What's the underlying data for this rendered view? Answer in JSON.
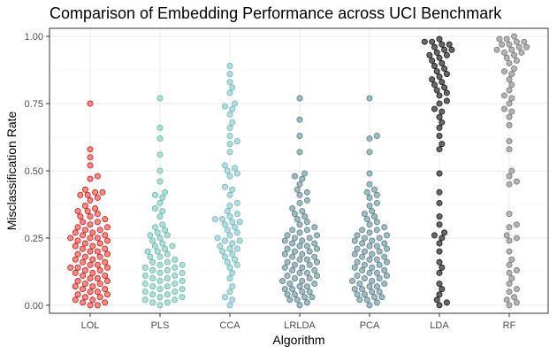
{
  "chart_data": {
    "type": "scatter",
    "subtype": "beeswarm",
    "title": "Comparison of Embedding Performance across UCI Benchmark",
    "xlabel": "Algorithm",
    "ylabel": "Misclassification Rate",
    "ylim": [
      -0.03,
      1.03
    ],
    "yticks": [
      0.0,
      0.25,
      0.5,
      0.75,
      1.0
    ],
    "ytick_labels": [
      "0.00",
      "0.25",
      "0.50",
      "0.75",
      "1.00"
    ],
    "grid": true,
    "legend": "none",
    "categories": [
      "LOL",
      "PLS",
      "CCA",
      "LRLDA",
      "PCA",
      "LDA",
      "RF"
    ],
    "series": [
      {
        "category": "LOL",
        "color": "#f8766d",
        "stroke": "#c81e1e",
        "values": [
          0.75,
          0.58,
          0.55,
          0.52,
          0.48,
          0.47,
          0.43,
          0.42,
          0.42,
          0.41,
          0.41,
          0.4,
          0.39,
          0.37,
          0.36,
          0.35,
          0.35,
          0.34,
          0.33,
          0.33,
          0.32,
          0.31,
          0.31,
          0.3,
          0.29,
          0.29,
          0.28,
          0.28,
          0.27,
          0.27,
          0.26,
          0.26,
          0.25,
          0.25,
          0.25,
          0.24,
          0.24,
          0.23,
          0.23,
          0.22,
          0.22,
          0.21,
          0.21,
          0.2,
          0.2,
          0.19,
          0.19,
          0.18,
          0.18,
          0.17,
          0.17,
          0.16,
          0.16,
          0.15,
          0.15,
          0.14,
          0.14,
          0.14,
          0.13,
          0.13,
          0.12,
          0.12,
          0.11,
          0.11,
          0.1,
          0.1,
          0.09,
          0.09,
          0.08,
          0.08,
          0.07,
          0.07,
          0.06,
          0.06,
          0.05,
          0.05,
          0.04,
          0.04,
          0.03,
          0.03,
          0.02,
          0.02,
          0.01,
          0.01,
          0.0,
          0.0
        ]
      },
      {
        "category": "PLS",
        "color": "#9fdcd0",
        "stroke": "#6fb5a8",
        "values": [
          0.77,
          0.66,
          0.62,
          0.56,
          0.5,
          0.46,
          0.42,
          0.41,
          0.4,
          0.38,
          0.36,
          0.35,
          0.33,
          0.3,
          0.29,
          0.28,
          0.27,
          0.26,
          0.26,
          0.25,
          0.24,
          0.23,
          0.22,
          0.22,
          0.21,
          0.2,
          0.2,
          0.19,
          0.18,
          0.18,
          0.17,
          0.16,
          0.16,
          0.15,
          0.15,
          0.14,
          0.14,
          0.13,
          0.13,
          0.12,
          0.12,
          0.11,
          0.11,
          0.1,
          0.1,
          0.09,
          0.09,
          0.08,
          0.08,
          0.07,
          0.07,
          0.06,
          0.06,
          0.05,
          0.05,
          0.04,
          0.04,
          0.03,
          0.03,
          0.02,
          0.02,
          0.01,
          0.01,
          0.0
        ]
      },
      {
        "category": "CCA",
        "color": "#a6d8dc",
        "stroke": "#72b5bb",
        "values": [
          0.89,
          0.86,
          0.83,
          0.81,
          0.79,
          0.75,
          0.74,
          0.73,
          0.71,
          0.68,
          0.66,
          0.63,
          0.61,
          0.6,
          0.57,
          0.52,
          0.51,
          0.5,
          0.49,
          0.48,
          0.44,
          0.43,
          0.41,
          0.38,
          0.37,
          0.35,
          0.34,
          0.33,
          0.32,
          0.32,
          0.31,
          0.31,
          0.3,
          0.29,
          0.28,
          0.27,
          0.26,
          0.25,
          0.24,
          0.24,
          0.23,
          0.22,
          0.21,
          0.21,
          0.2,
          0.19,
          0.18,
          0.17,
          0.16,
          0.15,
          0.14,
          0.12,
          0.1,
          0.07,
          0.05,
          0.03,
          0.02,
          0.0
        ]
      },
      {
        "category": "LRLDA",
        "color": "#8fb0b8",
        "stroke": "#5f8089",
        "values": [
          0.77,
          0.69,
          0.63,
          0.57,
          0.49,
          0.48,
          0.47,
          0.45,
          0.43,
          0.42,
          0.41,
          0.39,
          0.38,
          0.36,
          0.35,
          0.34,
          0.33,
          0.32,
          0.31,
          0.3,
          0.29,
          0.28,
          0.28,
          0.27,
          0.26,
          0.26,
          0.25,
          0.25,
          0.24,
          0.24,
          0.23,
          0.23,
          0.22,
          0.22,
          0.21,
          0.21,
          0.2,
          0.2,
          0.19,
          0.19,
          0.18,
          0.18,
          0.17,
          0.17,
          0.16,
          0.16,
          0.15,
          0.15,
          0.14,
          0.14,
          0.13,
          0.13,
          0.12,
          0.12,
          0.11,
          0.11,
          0.1,
          0.1,
          0.09,
          0.09,
          0.08,
          0.08,
          0.07,
          0.07,
          0.06,
          0.06,
          0.05,
          0.05,
          0.04,
          0.04,
          0.03,
          0.03,
          0.02,
          0.02,
          0.01,
          0.0
        ]
      },
      {
        "category": "PCA",
        "color": "#8fb0b8",
        "stroke": "#5f8089",
        "values": [
          0.77,
          0.63,
          0.62,
          0.57,
          0.49,
          0.45,
          0.43,
          0.42,
          0.41,
          0.4,
          0.38,
          0.37,
          0.35,
          0.34,
          0.33,
          0.32,
          0.31,
          0.3,
          0.29,
          0.28,
          0.28,
          0.27,
          0.26,
          0.26,
          0.25,
          0.25,
          0.24,
          0.24,
          0.23,
          0.23,
          0.22,
          0.22,
          0.21,
          0.21,
          0.2,
          0.2,
          0.19,
          0.19,
          0.18,
          0.18,
          0.17,
          0.17,
          0.16,
          0.16,
          0.15,
          0.15,
          0.14,
          0.14,
          0.13,
          0.13,
          0.12,
          0.12,
          0.11,
          0.11,
          0.1,
          0.1,
          0.09,
          0.09,
          0.08,
          0.08,
          0.07,
          0.07,
          0.06,
          0.06,
          0.05,
          0.05,
          0.04,
          0.04,
          0.03,
          0.03,
          0.02,
          0.02,
          0.01,
          0.0
        ]
      },
      {
        "category": "LDA",
        "color": "#4d4d4d",
        "stroke": "#1a1a1a",
        "values": [
          0.99,
          0.98,
          0.98,
          0.97,
          0.97,
          0.96,
          0.95,
          0.95,
          0.94,
          0.93,
          0.93,
          0.92,
          0.91,
          0.9,
          0.89,
          0.88,
          0.87,
          0.86,
          0.85,
          0.84,
          0.83,
          0.82,
          0.81,
          0.8,
          0.79,
          0.78,
          0.76,
          0.75,
          0.73,
          0.72,
          0.7,
          0.68,
          0.66,
          0.63,
          0.6,
          0.58,
          0.49,
          0.42,
          0.38,
          0.33,
          0.3,
          0.27,
          0.26,
          0.25,
          0.23,
          0.2,
          0.16,
          0.14,
          0.12,
          0.08,
          0.06,
          0.04,
          0.02,
          0.01,
          0.0
        ]
      },
      {
        "category": "RF",
        "color": "#a6a6a6",
        "stroke": "#7a7a7a",
        "values": [
          1.0,
          0.99,
          0.99,
          0.98,
          0.98,
          0.97,
          0.97,
          0.96,
          0.96,
          0.95,
          0.95,
          0.94,
          0.94,
          0.93,
          0.92,
          0.91,
          0.9,
          0.88,
          0.87,
          0.86,
          0.84,
          0.82,
          0.8,
          0.78,
          0.77,
          0.75,
          0.73,
          0.72,
          0.7,
          0.67,
          0.61,
          0.58,
          0.5,
          0.48,
          0.46,
          0.45,
          0.34,
          0.3,
          0.29,
          0.26,
          0.25,
          0.24,
          0.2,
          0.17,
          0.15,
          0.13,
          0.12,
          0.1,
          0.08,
          0.06,
          0.05,
          0.03,
          0.02,
          0.01,
          0.0
        ]
      }
    ]
  }
}
